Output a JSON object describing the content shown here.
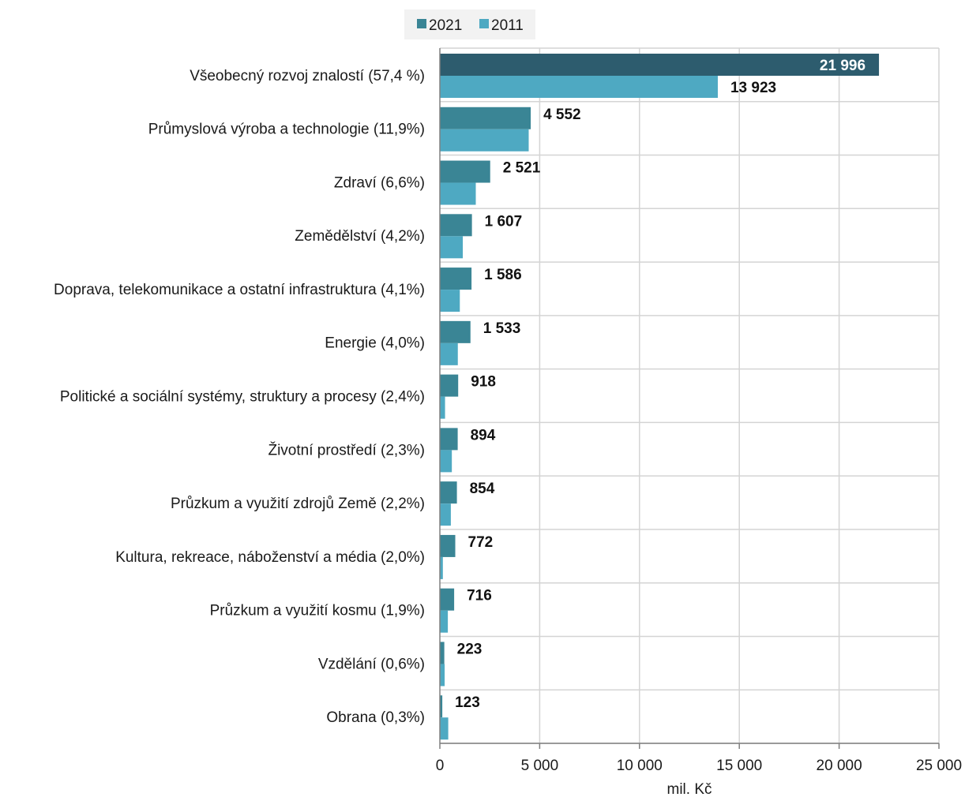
{
  "chart_data": {
    "type": "bar",
    "orientation": "horizontal",
    "xlabel": "mil. Kč",
    "xlim": [
      0,
      25000
    ],
    "x_ticks": [
      0,
      5000,
      10000,
      15000,
      20000,
      25000
    ],
    "x_tick_labels": [
      "0",
      "5 000",
      "10 000",
      "15 000",
      "20 000",
      "25 000"
    ],
    "grid": true,
    "legend_position": "top",
    "categories": [
      "Všeobecný rozvoj znalostí (57,4 %)",
      "Průmyslová výroba a technologie (11,9%)",
      "Zdraví (6,6%)",
      "Zemědělství (4,2%)",
      "Doprava, telekomunikace a ostatní infrastruktura (4,1%)",
      "Energie (4,0%)",
      "Politické a sociální systémy, struktury a procesy (2,4%)",
      "Životní prostředí (2,3%)",
      "Průzkum a využití zdrojů Země (2,2%)",
      "Kultura, rekreace, náboženství a média (2,0%)",
      "Průzkum a využití kosmu (1,9%)",
      "Vzdělání (0,6%)",
      "Obrana (0,3%)"
    ],
    "series": [
      {
        "name": "2021",
        "color": "#3a8595",
        "highlight_color": "#2d5c6e",
        "values": [
          21996,
          4552,
          2521,
          1607,
          1586,
          1533,
          918,
          894,
          854,
          772,
          716,
          223,
          123
        ],
        "value_labels": [
          "21 996",
          "4 552",
          "2 521",
          "1 607",
          "1 586",
          "1 533",
          "918",
          "894",
          "854",
          "772",
          "716",
          "223",
          "123"
        ]
      },
      {
        "name": "2011",
        "color": "#4ea9c2",
        "values": [
          13923,
          4450,
          1800,
          1150,
          1000,
          900,
          260,
          600,
          550,
          150,
          400,
          240,
          420
        ],
        "value_labels": [
          "13 923",
          "",
          "",
          "",
          "",
          "",
          "",
          "",
          "",
          "",
          "",
          "",
          ""
        ]
      }
    ]
  }
}
